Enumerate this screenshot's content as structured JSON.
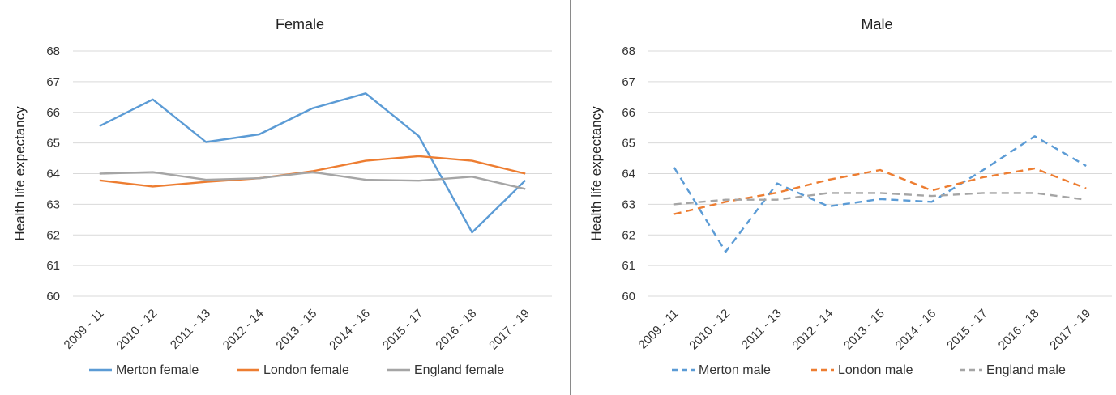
{
  "chart_data": [
    {
      "type": "line",
      "title": "Female",
      "ylabel": "Health life expectancy",
      "xlabel": "",
      "categories": [
        "2009 - 11",
        "2010 - 12",
        "2011 - 13",
        "2012 - 14",
        "2013 - 15",
        "2014 - 16",
        "2015 - 17",
        "2016 - 18",
        "2017 - 19"
      ],
      "ylim": [
        60,
        68
      ],
      "yticks": [
        "60",
        "61",
        "62",
        "63",
        "64",
        "65",
        "66",
        "67",
        "68"
      ],
      "grid": true,
      "legend_position": "bottom",
      "series": [
        {
          "name": "Merton female",
          "color": "#5b9bd5",
          "dash": "solid",
          "values": [
            65.55,
            66.42,
            65.03,
            65.28,
            66.13,
            66.62,
            65.22,
            62.08,
            63.78
          ]
        },
        {
          "name": "London female",
          "color": "#ed7d31",
          "dash": "solid",
          "values": [
            63.78,
            63.58,
            63.73,
            63.85,
            64.08,
            64.42,
            64.57,
            64.42,
            64.0
          ]
        },
        {
          "name": "England female",
          "color": "#a5a5a5",
          "dash": "solid",
          "values": [
            64.0,
            64.05,
            63.8,
            63.85,
            64.05,
            63.8,
            63.77,
            63.9,
            63.5
          ]
        }
      ]
    },
    {
      "type": "line",
      "title": "Male",
      "ylabel": "Health life expectancy",
      "xlabel": "",
      "categories": [
        "2009 - 11",
        "2010 - 12",
        "2011 - 13",
        "2012 - 14",
        "2013 - 15",
        "2014 - 16",
        "2015 - 17",
        "2016 - 18",
        "2017 - 19"
      ],
      "ylim": [
        60,
        68
      ],
      "yticks": [
        "60",
        "61",
        "62",
        "63",
        "64",
        "65",
        "66",
        "67",
        "68"
      ],
      "grid": true,
      "legend_position": "bottom",
      "series": [
        {
          "name": "Merton male",
          "color": "#5b9bd5",
          "dash": "dashed",
          "values": [
            64.2,
            61.45,
            63.68,
            62.93,
            63.17,
            63.08,
            64.12,
            65.22,
            64.25
          ]
        },
        {
          "name": "London male",
          "color": "#ed7d31",
          "dash": "dashed",
          "values": [
            62.68,
            63.08,
            63.38,
            63.8,
            64.12,
            63.45,
            63.88,
            64.17,
            63.52
          ]
        },
        {
          "name": "England male",
          "color": "#a5a5a5",
          "dash": "dashed",
          "values": [
            63.0,
            63.15,
            63.15,
            63.37,
            63.37,
            63.27,
            63.37,
            63.37,
            63.15
          ]
        }
      ]
    }
  ]
}
